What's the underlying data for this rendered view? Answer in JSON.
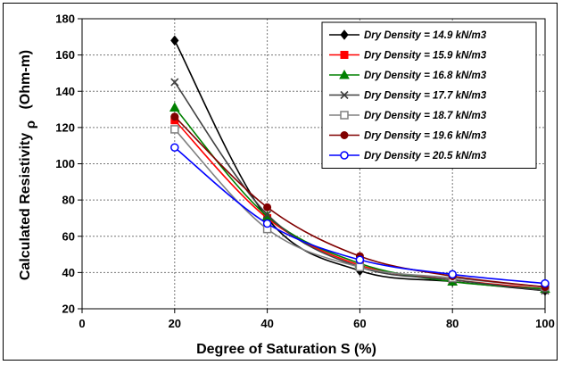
{
  "chart_data": {
    "type": "line",
    "title": "",
    "xlabel": "Degree of Saturation S (%)",
    "ylabel": "Calculated Resistivity",
    "ylabel_symbol": "ρ",
    "ylabel_unit": "(Ohm-m)",
    "xlim": [
      0,
      100
    ],
    "ylim": [
      20,
      180
    ],
    "xticks": [
      0,
      20,
      40,
      60,
      80,
      100
    ],
    "yticks": [
      20,
      40,
      60,
      80,
      100,
      120,
      140,
      160,
      180
    ],
    "grid": true,
    "legend_position": "top-right",
    "x": [
      20,
      40,
      60,
      80,
      100
    ],
    "series": [
      {
        "name": "Dry Density = 14.9 kN/m3",
        "marker": "diamond",
        "color": "#000000",
        "values": [
          168,
          70,
          41,
          35,
          30
        ]
      },
      {
        "name": "Dry Density = 15.9 kN/m3",
        "marker": "square",
        "color": "#ff0000",
        "values": [
          124,
          70,
          44,
          36,
          31
        ]
      },
      {
        "name": "Dry Density = 16.8 kN/m3",
        "marker": "triangle",
        "color": "#008000",
        "values": [
          131,
          71,
          45,
          35,
          31
        ]
      },
      {
        "name": "Dry Density = 17.7 kN/m3",
        "marker": "x",
        "color": "#404040",
        "values": [
          145,
          72,
          43,
          36,
          30
        ]
      },
      {
        "name": "Dry Density = 18.7 kN/m3",
        "marker": "square-open",
        "color": "#808080",
        "values": [
          119,
          64,
          43,
          37,
          32
        ]
      },
      {
        "name": "Dry Density = 19.6 kN/m3",
        "marker": "circle",
        "color": "#800000",
        "values": [
          126,
          76,
          49,
          38,
          32
        ]
      },
      {
        "name": "Dry Density = 20.5 kN/m3",
        "marker": "circle-open",
        "color": "#0000ff",
        "values": [
          109,
          67,
          47,
          39,
          34
        ]
      }
    ]
  }
}
